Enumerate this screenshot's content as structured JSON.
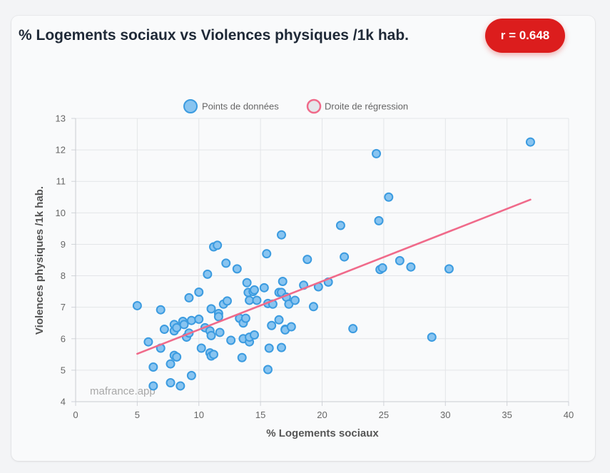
{
  "header": {
    "title": "% Logements sociaux vs Violences physiques /1k hab.",
    "correlation_badge": "r = 0.648"
  },
  "watermark": "mafrance.app",
  "colors": {
    "point_fill": "#88c4f0",
    "point_stroke": "#3b9be0",
    "regression_line": "#f06a8a",
    "badge": "#dc1d1d"
  },
  "chart_data": {
    "type": "scatter",
    "title": "% Logements sociaux vs Violences physiques /1k hab.",
    "xlabel": "% Logements sociaux",
    "ylabel": "Violences physiques /1k hab.",
    "xlim": [
      0,
      40
    ],
    "ylim": [
      4,
      13
    ],
    "xticks": [
      0,
      5,
      10,
      15,
      20,
      25,
      30,
      35,
      40
    ],
    "yticks": [
      4,
      5,
      6,
      7,
      8,
      9,
      10,
      11,
      12,
      13
    ],
    "grid": true,
    "legend_position": "top-center",
    "legend": [
      "Points de données",
      "Droite de régression"
    ],
    "series": [
      {
        "name": "Points de données",
        "points": [
          [
            5.0,
            7.05
          ],
          [
            5.9,
            5.9
          ],
          [
            6.3,
            5.1
          ],
          [
            6.3,
            4.5
          ],
          [
            6.9,
            6.92
          ],
          [
            6.9,
            5.7
          ],
          [
            7.2,
            6.3
          ],
          [
            7.7,
            5.2
          ],
          [
            7.7,
            4.6
          ],
          [
            8.0,
            6.45
          ],
          [
            8.0,
            6.25
          ],
          [
            8.0,
            5.47
          ],
          [
            8.2,
            6.35
          ],
          [
            8.2,
            5.42
          ],
          [
            8.5,
            4.5
          ],
          [
            8.7,
            6.55
          ],
          [
            8.8,
            6.45
          ],
          [
            9.0,
            6.05
          ],
          [
            9.2,
            7.3
          ],
          [
            9.2,
            6.18
          ],
          [
            9.4,
            6.58
          ],
          [
            9.4,
            4.83
          ],
          [
            10.0,
            7.48
          ],
          [
            10.0,
            6.62
          ],
          [
            10.2,
            5.7
          ],
          [
            10.5,
            6.35
          ],
          [
            10.7,
            8.05
          ],
          [
            10.9,
            6.25
          ],
          [
            10.9,
            5.55
          ],
          [
            11.0,
            6.95
          ],
          [
            11.0,
            6.1
          ],
          [
            11.0,
            5.45
          ],
          [
            11.2,
            8.92
          ],
          [
            11.2,
            5.5
          ],
          [
            11.5,
            8.97
          ],
          [
            11.6,
            6.8
          ],
          [
            11.6,
            6.7
          ],
          [
            11.7,
            6.2
          ],
          [
            12.0,
            7.1
          ],
          [
            12.2,
            8.4
          ],
          [
            12.3,
            7.2
          ],
          [
            12.6,
            5.95
          ],
          [
            13.1,
            8.22
          ],
          [
            13.3,
            6.65
          ],
          [
            13.5,
            5.4
          ],
          [
            13.6,
            6.5
          ],
          [
            13.6,
            6.0
          ],
          [
            13.8,
            6.65
          ],
          [
            13.9,
            7.78
          ],
          [
            14.0,
            7.47
          ],
          [
            14.1,
            7.22
          ],
          [
            14.1,
            5.9
          ],
          [
            14.1,
            6.05
          ],
          [
            14.4,
            7.5
          ],
          [
            14.5,
            7.55
          ],
          [
            14.5,
            6.12
          ],
          [
            14.7,
            7.22
          ],
          [
            15.3,
            7.62
          ],
          [
            15.5,
            8.7
          ],
          [
            15.6,
            7.12
          ],
          [
            15.6,
            5.02
          ],
          [
            15.7,
            5.7
          ],
          [
            15.9,
            6.42
          ],
          [
            16.0,
            7.1
          ],
          [
            16.5,
            6.6
          ],
          [
            16.5,
            7.47
          ],
          [
            16.7,
            7.47
          ],
          [
            16.7,
            9.3
          ],
          [
            16.8,
            7.82
          ],
          [
            16.7,
            5.72
          ],
          [
            17.0,
            6.3
          ],
          [
            17.0,
            6.28
          ],
          [
            17.1,
            7.32
          ],
          [
            17.3,
            7.1
          ],
          [
            17.5,
            6.38
          ],
          [
            17.8,
            7.22
          ],
          [
            18.5,
            7.7
          ],
          [
            18.8,
            8.52
          ],
          [
            19.3,
            7.02
          ],
          [
            19.7,
            7.65
          ],
          [
            20.5,
            7.8
          ],
          [
            21.5,
            9.6
          ],
          [
            21.8,
            8.6
          ],
          [
            22.5,
            6.32
          ],
          [
            24.4,
            11.88
          ],
          [
            24.6,
            9.75
          ],
          [
            24.7,
            8.2
          ],
          [
            24.9,
            8.25
          ],
          [
            25.4,
            10.5
          ],
          [
            26.3,
            8.48
          ],
          [
            27.2,
            8.28
          ],
          [
            28.9,
            6.05
          ],
          [
            30.3,
            8.22
          ],
          [
            36.9,
            12.25
          ]
        ]
      },
      {
        "name": "Droite de régression",
        "line": [
          [
            5.0,
            5.52
          ],
          [
            36.9,
            10.42
          ]
        ]
      }
    ]
  }
}
